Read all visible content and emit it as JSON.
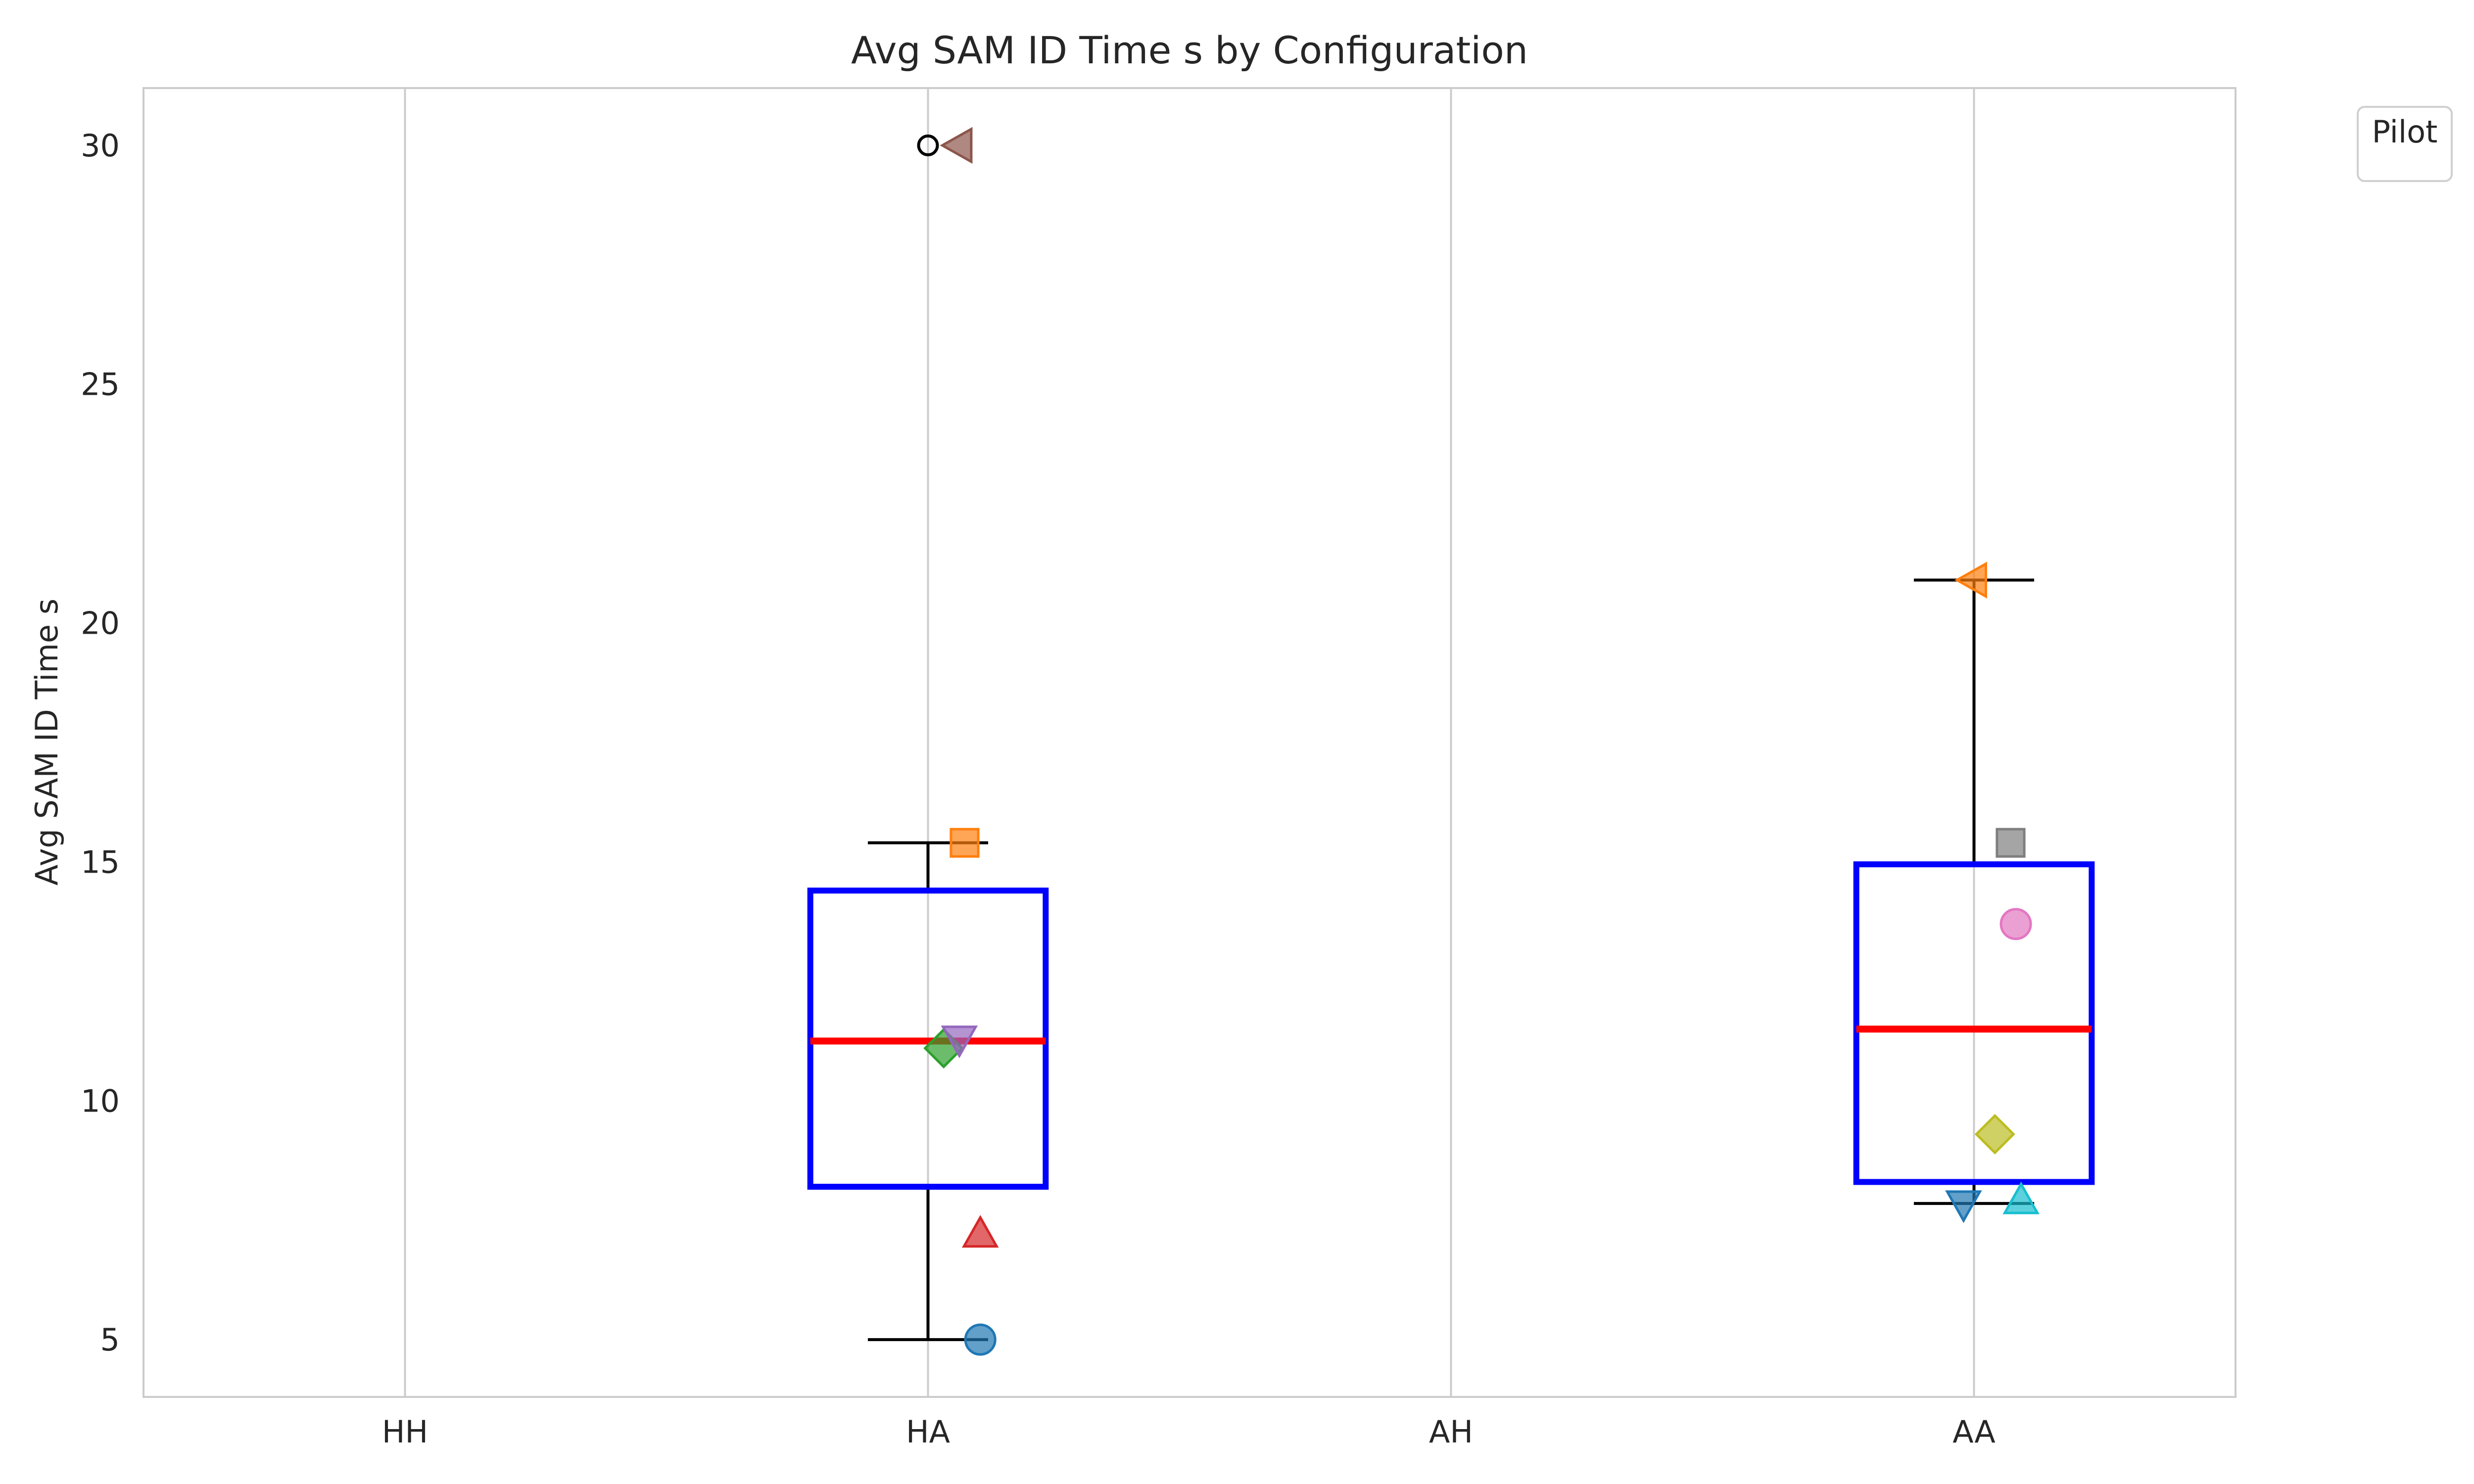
{
  "chart_data": {
    "type": "box",
    "title": "Avg SAM ID Time s by Configuration",
    "xlabel": "",
    "ylabel": "Avg SAM ID Time s",
    "categories": [
      "HH",
      "HA",
      "AH",
      "AA"
    ],
    "ylim": [
      3.8,
      31.2
    ],
    "yticks": [
      5,
      10,
      15,
      20,
      25,
      30
    ],
    "grid": "x",
    "legend": {
      "title": "Pilot",
      "placement": "upper-right-outside",
      "entries": []
    },
    "colors": {
      "box": "#0000ff",
      "median": "#ff0000",
      "whisker": "#000000",
      "grid": "#cccccc",
      "spine": "#cccccc"
    },
    "boxes": [
      {
        "category": "HA",
        "whisker_low": 5.0,
        "q1": 8.2,
        "median": 11.25,
        "q3": 14.4,
        "whisker_high": 15.4,
        "fliers": [
          30.0
        ]
      },
      {
        "category": "AA",
        "whisker_low": 7.85,
        "q1": 8.3,
        "median": 11.5,
        "q3": 14.95,
        "whisker_high": 20.9,
        "fliers": []
      }
    ],
    "points": [
      {
        "category": "HA",
        "offset": 0.1,
        "y": 5.0,
        "marker": "circle",
        "color": "#1f77b4"
      },
      {
        "category": "HA",
        "offset": 0.1,
        "y": 7.2,
        "marker": "triangle-up",
        "color": "#d62728"
      },
      {
        "category": "HA",
        "offset": 0.03,
        "y": 11.1,
        "marker": "diamond",
        "color": "#2ca02c"
      },
      {
        "category": "HA",
        "offset": 0.06,
        "y": 11.3,
        "marker": "triangle-down",
        "color": "#9467bd"
      },
      {
        "category": "HA",
        "offset": 0.07,
        "y": 15.4,
        "marker": "square",
        "color": "#ff7f0e"
      },
      {
        "category": "HA",
        "offset": 0.06,
        "y": 30.0,
        "marker": "triangle-left",
        "color": "#8c564b"
      },
      {
        "category": "AA",
        "offset": -0.02,
        "y": 7.85,
        "marker": "triangle-down",
        "color": "#1f77b4"
      },
      {
        "category": "AA",
        "offset": 0.09,
        "y": 7.9,
        "marker": "triangle-up",
        "color": "#17becf"
      },
      {
        "category": "AA",
        "offset": 0.04,
        "y": 9.3,
        "marker": "diamond",
        "color": "#bcbd22"
      },
      {
        "category": "AA",
        "offset": 0.08,
        "y": 13.7,
        "marker": "circle",
        "color": "#e377c2"
      },
      {
        "category": "AA",
        "offset": 0.07,
        "y": 15.4,
        "marker": "square",
        "color": "#7f7f7f"
      },
      {
        "category": "AA",
        "offset": 0.0,
        "y": 20.9,
        "marker": "triangle-left",
        "color": "#ff7f0e"
      }
    ]
  }
}
